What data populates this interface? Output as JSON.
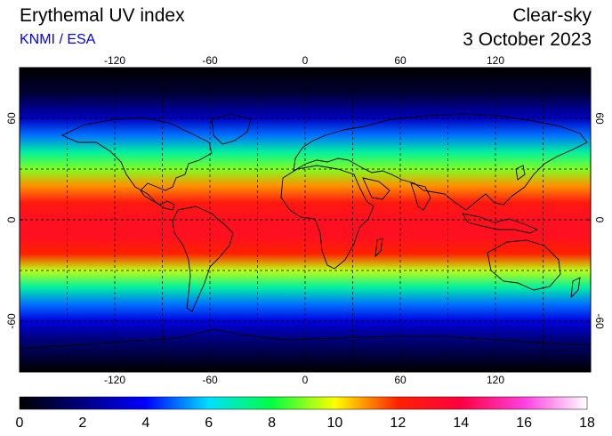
{
  "header": {
    "title": "Erythemal UV index",
    "source": "KNMI / ESA",
    "condition": "Clear-sky",
    "date": "3 October 2023"
  },
  "map": {
    "projection": "equirectangular",
    "lon_ticks": [
      {
        "value": -120,
        "label": "-120"
      },
      {
        "value": -60,
        "label": "-60"
      },
      {
        "value": 0,
        "label": "0"
      },
      {
        "value": 60,
        "label": "60"
      },
      {
        "value": 120,
        "label": "120"
      }
    ],
    "lat_ticks": [
      {
        "value": 60,
        "label": "60"
      },
      {
        "value": 0,
        "label": "0"
      },
      {
        "value": -60,
        "label": "-60"
      }
    ],
    "uv_by_latitude": [
      {
        "lat": 90,
        "uv": 0
      },
      {
        "lat": 75,
        "uv": 0.8
      },
      {
        "lat": 60,
        "uv": 3
      },
      {
        "lat": 50,
        "uv": 5
      },
      {
        "lat": 40,
        "uv": 7
      },
      {
        "lat": 30,
        "uv": 9
      },
      {
        "lat": 20,
        "uv": 11
      },
      {
        "lat": 10,
        "uv": 12.5
      },
      {
        "lat": 0,
        "uv": 13
      },
      {
        "lat": -10,
        "uv": 13
      },
      {
        "lat": -20,
        "uv": 12
      },
      {
        "lat": -30,
        "uv": 9.5
      },
      {
        "lat": -40,
        "uv": 7
      },
      {
        "lat": -50,
        "uv": 5
      },
      {
        "lat": -60,
        "uv": 3.5
      },
      {
        "lat": -70,
        "uv": 2
      },
      {
        "lat": -80,
        "uv": 1
      },
      {
        "lat": -90,
        "uv": 0
      }
    ]
  },
  "colorbar": {
    "min": 0,
    "max": 18,
    "tick_labels": [
      "0",
      "2",
      "4",
      "6",
      "8",
      "10",
      "12",
      "14",
      "16",
      "18"
    ],
    "stops": [
      {
        "value": 0,
        "color": "#000000"
      },
      {
        "value": 2,
        "color": "#000080"
      },
      {
        "value": 4,
        "color": "#0000ff"
      },
      {
        "value": 6,
        "color": "#00e0ff"
      },
      {
        "value": 8,
        "color": "#00ff40"
      },
      {
        "value": 10,
        "color": "#ffff00"
      },
      {
        "value": 12,
        "color": "#ff2000"
      },
      {
        "value": 14,
        "color": "#ff0040"
      },
      {
        "value": 16,
        "color": "#ff40e0"
      },
      {
        "value": 18,
        "color": "#ffffff"
      }
    ]
  }
}
